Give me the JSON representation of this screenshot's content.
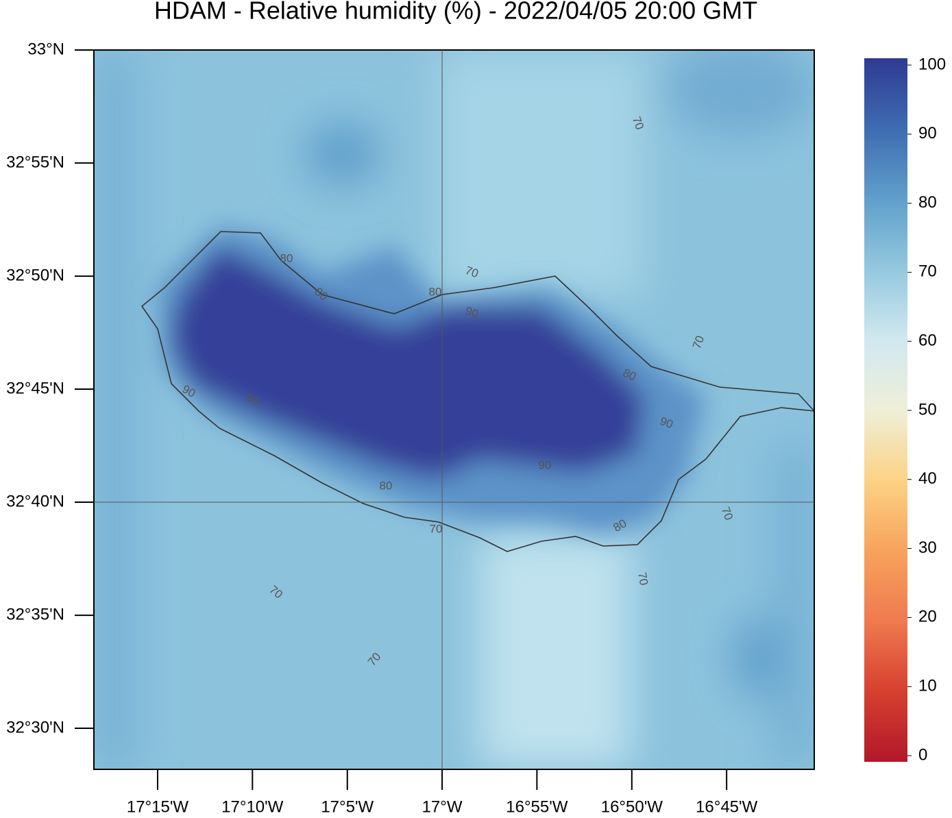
{
  "chart_data": {
    "type": "map",
    "title": "HDAM - Relative humidity (%)  -  2022/04/05  20:00 GMT",
    "xlim": [
      -17.306,
      -16.673
    ],
    "ylim": [
      32.4697,
      33.0
    ],
    "xticks": [
      {
        "value": -17.25,
        "label": "17°15'W"
      },
      {
        "value": -17.1667,
        "label": "17°10'W"
      },
      {
        "value": -17.0833,
        "label": "17°5'W"
      },
      {
        "value": -17.0,
        "label": "17°W"
      },
      {
        "value": -16.9167,
        "label": "16°55'W"
      },
      {
        "value": -16.8333,
        "label": "16°50'W"
      },
      {
        "value": -16.75,
        "label": "16°45'W"
      }
    ],
    "yticks": [
      {
        "value": 33.0,
        "label": "33°N"
      },
      {
        "value": 32.9167,
        "label": "32°55'N"
      },
      {
        "value": 32.8333,
        "label": "32°50'N"
      },
      {
        "value": 32.75,
        "label": "32°45'N"
      },
      {
        "value": 32.6667,
        "label": "32°40'N"
      },
      {
        "value": 32.5833,
        "label": "32°35'N"
      },
      {
        "value": 32.5,
        "label": "32°30'N"
      }
    ],
    "grid_x": -17.0,
    "grid_y": 32.6667,
    "colorbar": {
      "lim": [
        0,
        100
      ],
      "ticks": [
        0,
        10,
        20,
        30,
        40,
        50,
        60,
        70,
        80,
        90,
        100
      ],
      "colors": [
        "#b2182b",
        "#d6402f",
        "#ef7a4f",
        "#f7a35c",
        "#fcd285",
        "#efefd8",
        "#d1e8f0",
        "#94c8df",
        "#5f9fcb",
        "#3f6cb1",
        "#2f3a92"
      ]
    },
    "contour_labels": [
      70,
      80,
      70,
      80,
      80,
      90,
      70,
      80,
      90,
      90,
      90,
      90,
      80,
      70,
      70,
      80,
      70,
      70,
      70
    ]
  }
}
